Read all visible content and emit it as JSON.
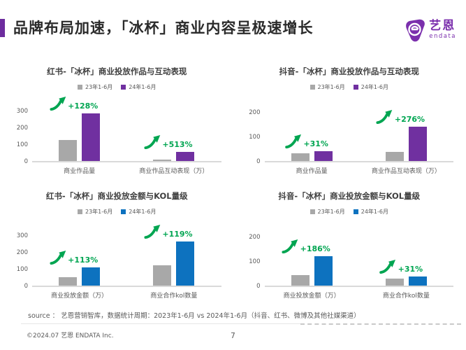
{
  "header": {
    "title": "品牌布局加速，「冰杯」商业内容呈极速增长",
    "logo": {
      "brand": "艺恩",
      "sub": "endata"
    }
  },
  "colors": {
    "accent_purple": "#6d2c9e",
    "bar_gray": "#a8a8a8",
    "bar_purple": "#7030a0",
    "bar_blue": "#0d72bf",
    "growth_green": "#00a551",
    "logo_purple": "#7b2fad"
  },
  "chart_data": [
    {
      "type": "bar",
      "title": "红书-「冰杯」商业投放作品与互动表现",
      "categories": [
        "商业作品量",
        "商业作品互动表现（万）"
      ],
      "series": [
        {
          "name": "23年1-6月",
          "color": "#a8a8a8",
          "values": [
            125,
            9
          ]
        },
        {
          "name": "24年1-6月",
          "color": "#7030a0",
          "values": [
            285,
            55
          ]
        }
      ],
      "growth": [
        "+128%",
        "+513%"
      ],
      "yticks": [
        0,
        100,
        200,
        300
      ],
      "ylim": 300,
      "legend_position": "top",
      "grid": false
    },
    {
      "type": "bar",
      "title": "抖音-「冰杯」商业投放作品与互动表现",
      "categories": [
        "商业作品量",
        "商业作品互动表现（万）"
      ],
      "series": [
        {
          "name": "23年1-6月",
          "color": "#a8a8a8",
          "values": [
            31,
            37
          ]
        },
        {
          "name": "24年1-6月",
          "color": "#7030a0",
          "values": [
            41,
            139
          ]
        }
      ],
      "growth": [
        "+31%",
        "+276%"
      ],
      "yticks": [
        0,
        100,
        200
      ],
      "ylim": 200,
      "legend_position": "top",
      "grid": false
    },
    {
      "type": "bar",
      "title": "红书-「冰杯」商业投放金额与KOL量级",
      "categories": [
        "商业投放金额（万）",
        "商业合作kol数量"
      ],
      "series": [
        {
          "name": "23年1-6月",
          "color": "#a8a8a8",
          "values": [
            50,
            120
          ]
        },
        {
          "name": "24年1-6月",
          "color": "#0d72bf",
          "values": [
            107,
            262
          ]
        }
      ],
      "growth": [
        "+113%",
        "+119%"
      ],
      "yticks": [
        0,
        100,
        200,
        300
      ],
      "ylim": 300,
      "legend_position": "top",
      "grid": false
    },
    {
      "type": "bar",
      "title": "抖音-「冰杯」商业投放金额与KOL量级",
      "categories": [
        "商业投放金额（万）",
        "商业合作kol数量"
      ],
      "series": [
        {
          "name": "23年1-6月",
          "color": "#a8a8a8",
          "values": [
            42,
            28
          ]
        },
        {
          "name": "24年1-6月",
          "color": "#0d72bf",
          "values": [
            120,
            37
          ]
        }
      ],
      "growth": [
        "+186%",
        "+31%"
      ],
      "yticks": [
        0,
        100,
        200
      ],
      "ylim": 200,
      "legend_position": "top",
      "grid": false
    }
  ],
  "footer": {
    "source": "source ： 艺恩营销智库，数据统计周期：2023年1-6月 vs 2024年1-6月（抖音、红书、微博及其他社媒渠道）",
    "copyright": "©2024.07 艺恩 ENDATA Inc.",
    "page": "7"
  }
}
